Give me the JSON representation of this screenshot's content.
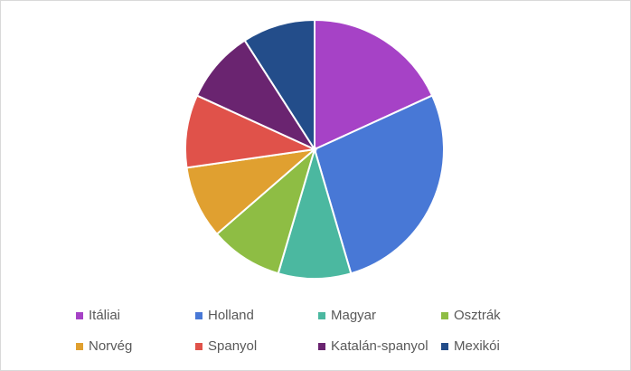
{
  "chart_data": {
    "type": "pie",
    "categories": [
      "Itáliai",
      "Holland",
      "Magyar",
      "Osztrák",
      "Norvég",
      "Spanyol",
      "Katalán-spanyol",
      "Mexikói"
    ],
    "values": [
      2,
      3,
      1,
      1,
      1,
      1,
      1,
      1
    ],
    "colors": [
      "#a642c6",
      "#4878d6",
      "#4bb8a0",
      "#8ebd44",
      "#e0a030",
      "#e0524a",
      "#6a2470",
      "#234d8a"
    ],
    "legend": "bottom"
  }
}
